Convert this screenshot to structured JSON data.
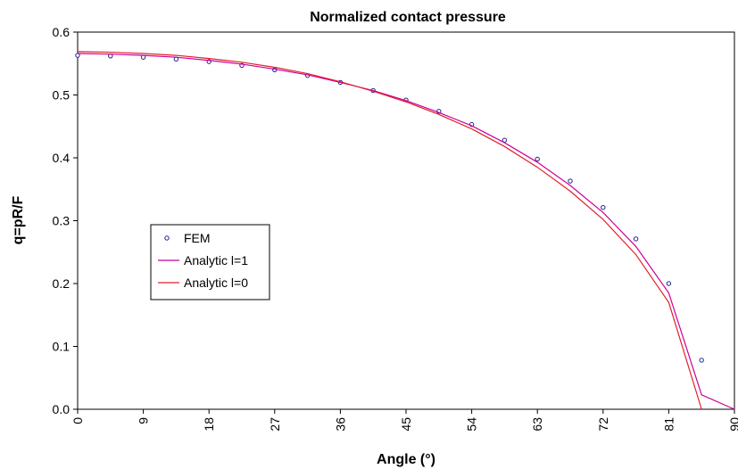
{
  "chart_data": {
    "type": "line",
    "title": "Normalized contact pressure",
    "xlabel": "Angle (°)",
    "ylabel": "q=pR/F",
    "xlim": [
      0,
      90
    ],
    "ylim": [
      0,
      0.6
    ],
    "x_ticks": [
      "0",
      "9",
      "18",
      "27",
      "36",
      "45",
      "54",
      "63",
      "72",
      "81",
      "90"
    ],
    "y_ticks": [
      "0.0",
      "0.1",
      "0.2",
      "0.3",
      "0.4",
      "0.5",
      "0.6"
    ],
    "grid": false,
    "legend_position": "center-left",
    "colors": {
      "fem": "#1f1f8f",
      "analytic_l1": "#cc0099",
      "analytic_l0": "#e0202a"
    },
    "series": [
      {
        "name": "FEM",
        "style": "markers",
        "x": [
          0,
          4.5,
          9,
          13.5,
          18,
          22.5,
          27,
          31.5,
          36,
          40.5,
          45,
          49.5,
          54,
          58.5,
          63,
          67.5,
          72,
          76.5,
          81,
          85.5
        ],
        "values": [
          0.563,
          0.562,
          0.56,
          0.557,
          0.553,
          0.547,
          0.54,
          0.531,
          0.52,
          0.507,
          0.492,
          0.474,
          0.453,
          0.428,
          0.398,
          0.363,
          0.321,
          0.271,
          0.2,
          0.078
        ]
      },
      {
        "name": "Analytic l=1",
        "style": "line",
        "x": [
          0,
          4.5,
          9,
          13.5,
          18,
          22.5,
          27,
          31.5,
          36,
          40.5,
          45,
          49.5,
          54,
          58.5,
          63,
          67.5,
          72,
          76.5,
          81,
          85.5,
          90
        ],
        "values": [
          0.566,
          0.565,
          0.563,
          0.56,
          0.555,
          0.549,
          0.541,
          0.532,
          0.52,
          0.507,
          0.491,
          0.472,
          0.451,
          0.424,
          0.393,
          0.356,
          0.313,
          0.259,
          0.185,
          0.023,
          0.0
        ]
      },
      {
        "name": "Analytic l=0",
        "style": "line",
        "x": [
          0,
          4.5,
          9,
          13.5,
          18,
          22.5,
          27,
          31.5,
          36,
          40.5,
          45,
          49.5,
          54,
          58.5,
          63,
          67.5,
          72,
          76.5,
          81,
          85.5
        ],
        "values": [
          0.569,
          0.568,
          0.566,
          0.563,
          0.558,
          0.552,
          0.544,
          0.534,
          0.521,
          0.506,
          0.489,
          0.469,
          0.446,
          0.418,
          0.385,
          0.347,
          0.302,
          0.246,
          0.17,
          0.0
        ]
      }
    ]
  }
}
